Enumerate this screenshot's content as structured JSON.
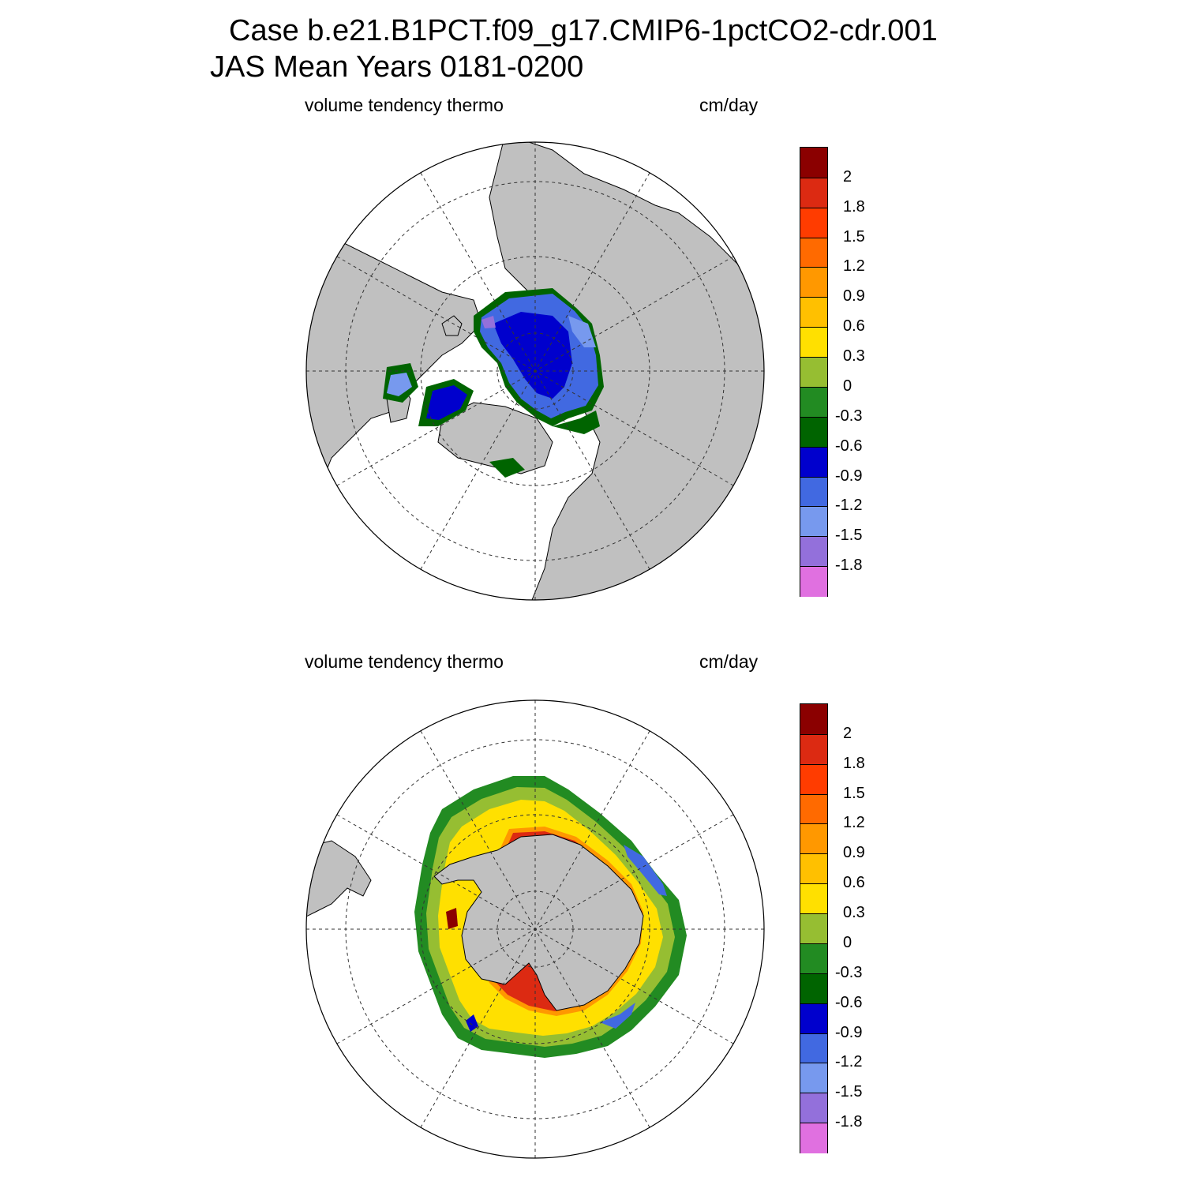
{
  "title": {
    "line1": "Case b.e21.B1PCT.f09_g17.CMIP6-1pctCO2-cdr.001",
    "line2": "JAS Mean   Years 0181-0200"
  },
  "panels": [
    {
      "id": "north",
      "variable": "volume tendency thermo",
      "units": "cm/day",
      "hemisphere": "Arctic (Northern Hemisphere polar stereographic)"
    },
    {
      "id": "south",
      "variable": "volume tendency thermo",
      "units": "cm/day",
      "hemisphere": "Antarctic (Southern Hemisphere polar stereographic)"
    }
  ],
  "colorbar": {
    "labels": [
      "2",
      "1.8",
      "1.5",
      "1.2",
      "0.9",
      "0.6",
      "0.3",
      "0",
      "-0.3",
      "-0.6",
      "-0.9",
      "-1.2",
      "-1.5",
      "-1.8"
    ],
    "colors": [
      "#8b0000",
      "#dc2a12",
      "#ff3c00",
      "#ff6a00",
      "#ff9800",
      "#ffc000",
      "#ffe000",
      "#96be32",
      "#228b22",
      "#006400",
      "#0000cd",
      "#4169e1",
      "#7799ee",
      "#9370db",
      "#e070e0"
    ]
  },
  "colors": {
    "land": "#c0c0c0",
    "ocean": "#ffffff",
    "grid": "#333333"
  }
}
